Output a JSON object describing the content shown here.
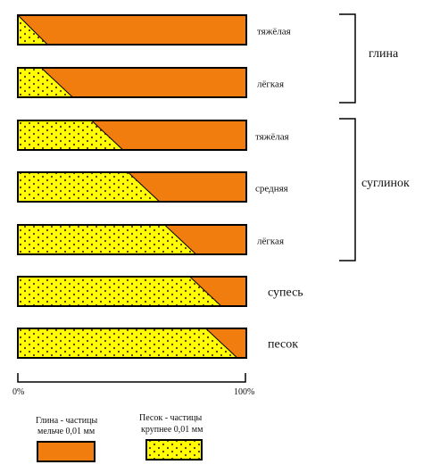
{
  "colors": {
    "clay": "#f07d0e",
    "sand": "#ffff00",
    "dot": "#6b2a0a",
    "line": "#000000"
  },
  "bars": [
    {
      "label": "тяжёлая",
      "sand_fraction": 0.13
    },
    {
      "label": "лёгкая",
      "sand_fraction": 0.24
    },
    {
      "label": "тяжёлая",
      "sand_fraction": 0.46
    },
    {
      "label": "средняя",
      "sand_fraction": 0.62
    },
    {
      "label": "лёгкая",
      "sand_fraction": 0.78
    },
    {
      "label": "супесь",
      "sand_fraction": 0.89
    },
    {
      "label": "песок",
      "sand_fraction": 0.96
    }
  ],
  "groups": [
    {
      "label": "глина"
    },
    {
      "label": "суглинок"
    }
  ],
  "axis": {
    "start_label": "0%",
    "end_label": "100%"
  },
  "legend": {
    "clay_line1": "Глина - частицы",
    "clay_line2": "мельче 0,01 мм",
    "sand_line1": "Песок - частицы",
    "sand_line2": "крупнее 0,01 мм"
  }
}
